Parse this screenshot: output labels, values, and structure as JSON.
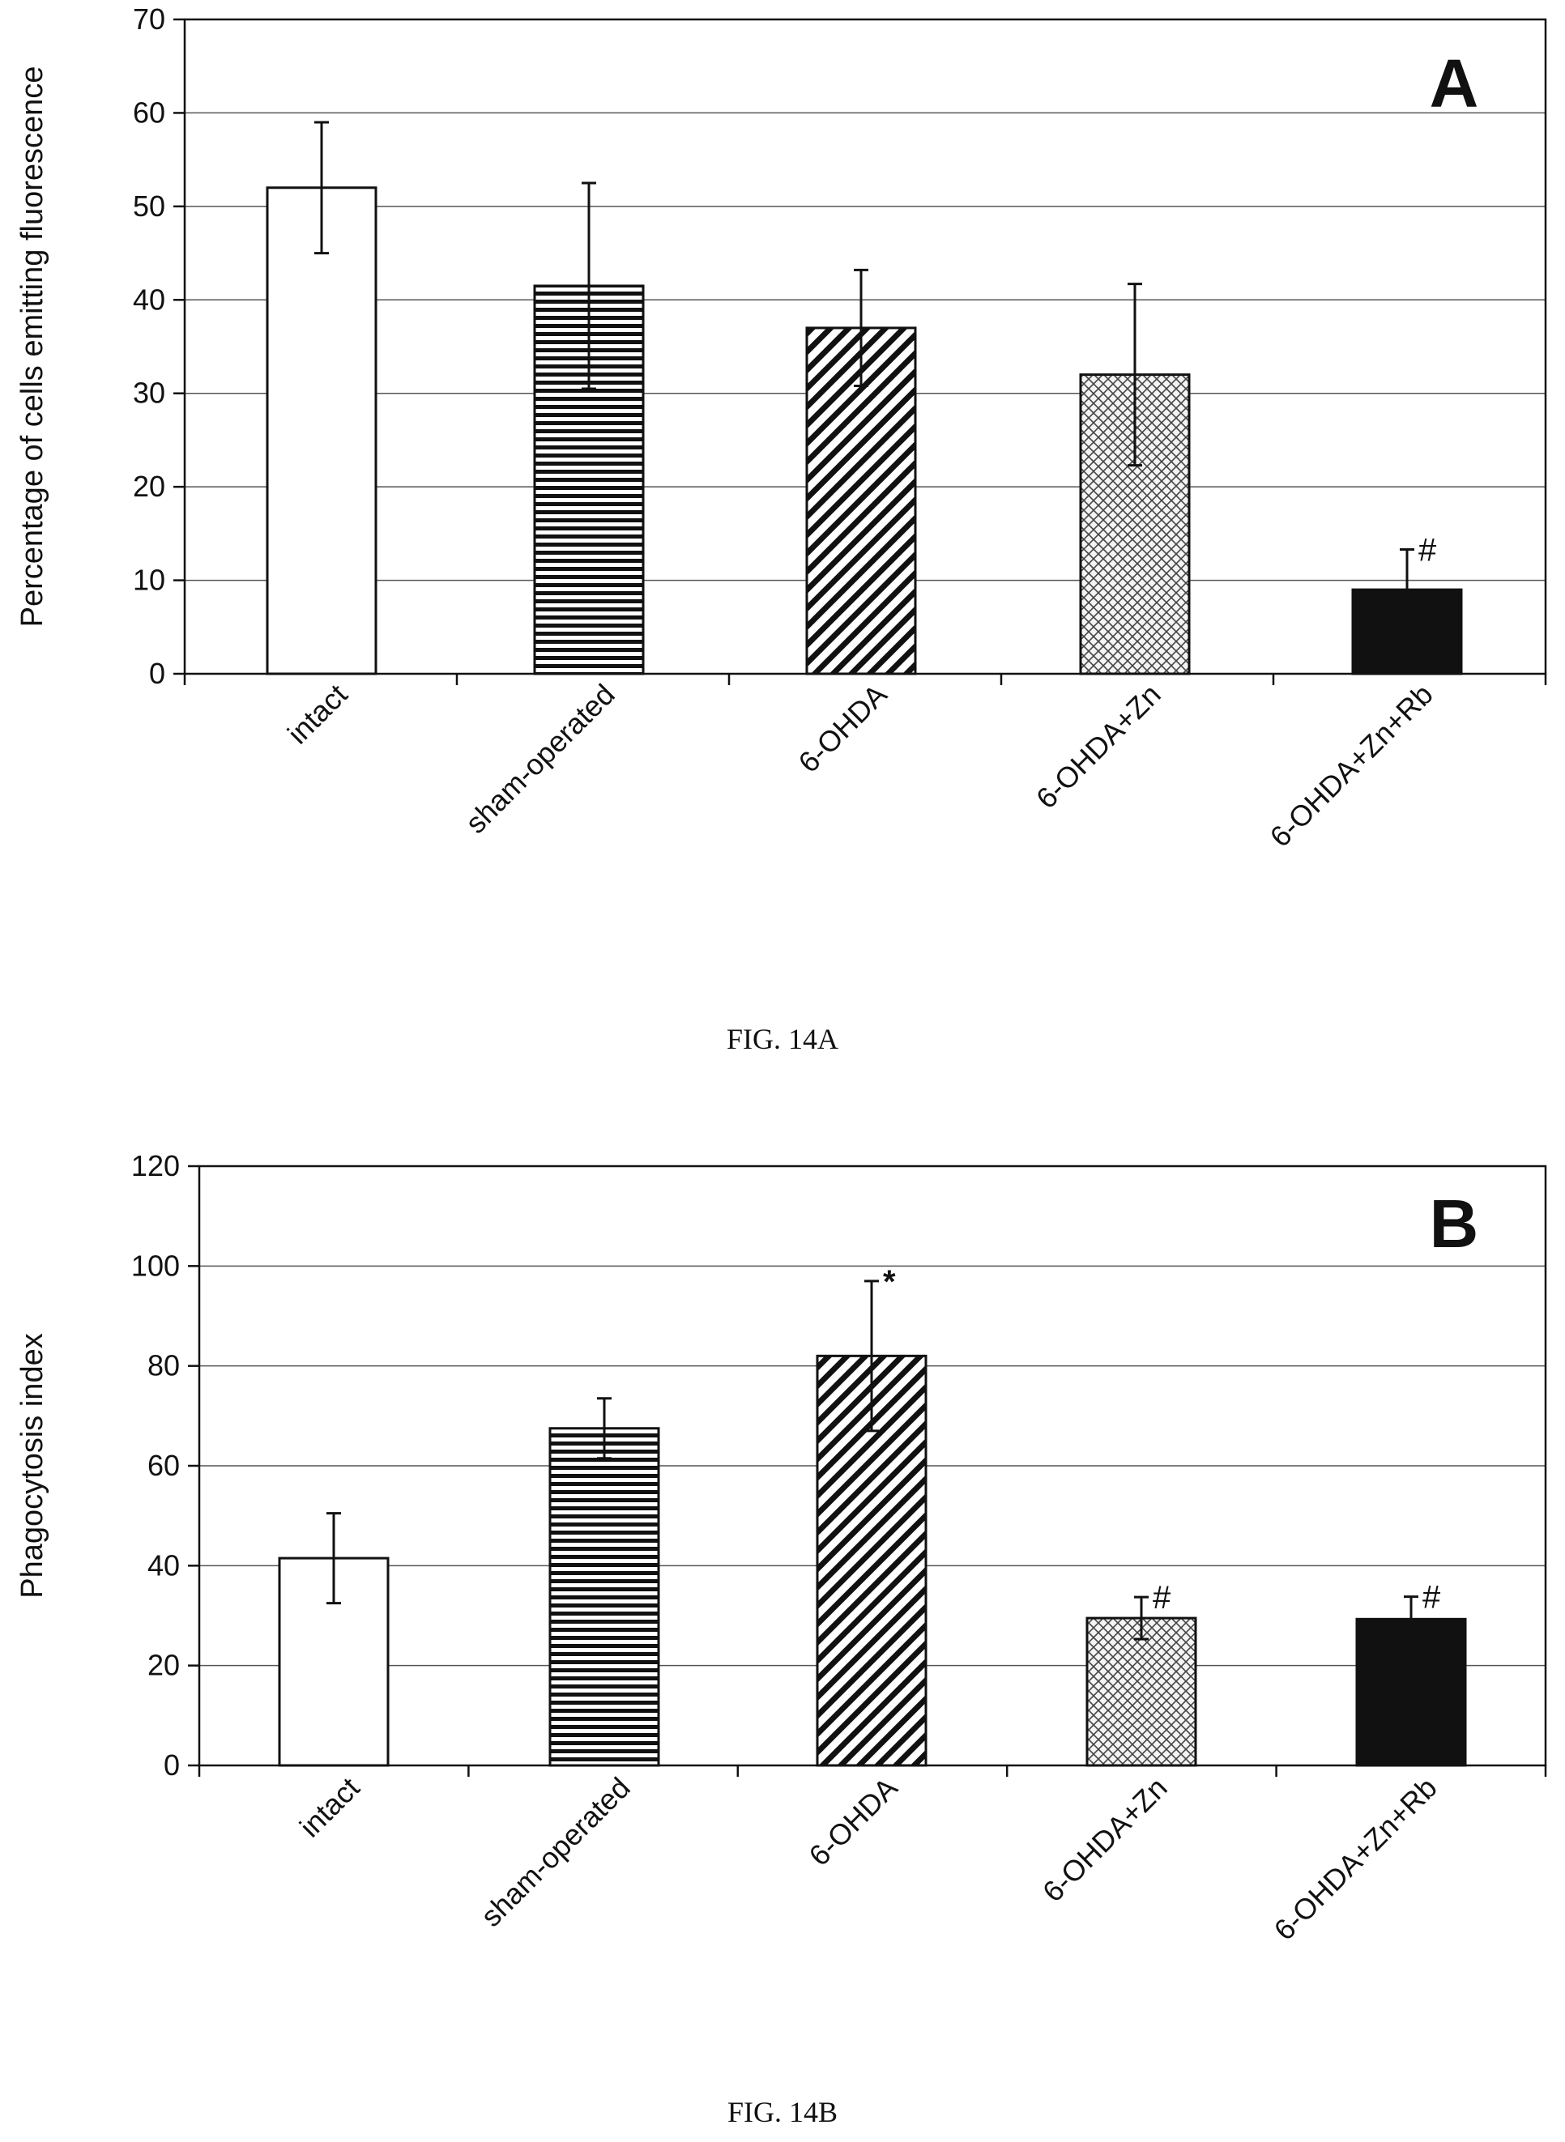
{
  "chart_data": [
    {
      "type": "bar",
      "panel_label": "A",
      "categories": [
        "intact",
        "sham-operated",
        "6-OHDA",
        "6-OHDA+Zn",
        "6-OHDA+Zn+Rb"
      ],
      "values": [
        52,
        41.5,
        37,
        32,
        9
      ],
      "error": [
        7,
        11,
        6.2,
        9.7,
        4.3
      ],
      "annotations": [
        "",
        "",
        "",
        "",
        "#"
      ],
      "patterns": [
        "white",
        "hlines",
        "diag",
        "cross",
        "solid"
      ],
      "ylabel": "Percentage of cells emitting fluorescence",
      "ylim": [
        0,
        70
      ],
      "yticks": [
        "0",
        "10",
        "20",
        "30",
        "40",
        "50",
        "60",
        "70"
      ],
      "grid": true,
      "caption": "FIG. 14A"
    },
    {
      "type": "bar",
      "panel_label": "B",
      "categories": [
        "intact",
        "sham-operated",
        "6-OHDA",
        "6-OHDA+Zn",
        "6-OHDA+Zn+Rb"
      ],
      "values": [
        41.5,
        67.5,
        82,
        29.5,
        29.3
      ],
      "error": [
        9,
        6,
        15,
        4.2,
        4.5
      ],
      "annotations": [
        "",
        "",
        "*",
        "#",
        "#"
      ],
      "patterns": [
        "white",
        "hlines",
        "diag",
        "cross",
        "solid"
      ],
      "ylabel": "Phagocytosis index",
      "ylim": [
        0,
        120
      ],
      "yticks": [
        "0",
        "20",
        "40",
        "60",
        "80",
        "100",
        "120"
      ],
      "grid": true,
      "caption": "FIG. 14B"
    }
  ]
}
